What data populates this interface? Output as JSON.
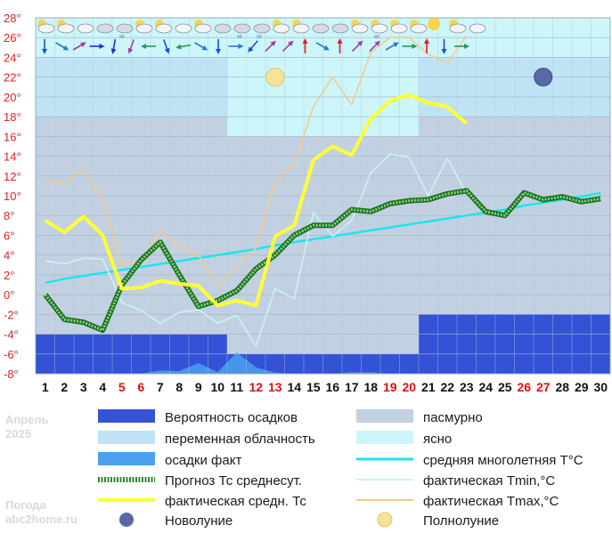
{
  "chart_data": {
    "type": "line",
    "x": [
      1,
      2,
      3,
      4,
      5,
      6,
      7,
      8,
      9,
      10,
      11,
      12,
      13,
      14,
      15,
      16,
      17,
      18,
      19,
      20,
      21,
      22,
      23,
      24,
      25,
      26,
      27,
      28,
      29,
      30
    ],
    "x_labels": [
      "1",
      "2",
      "3",
      "4",
      "5",
      "6",
      "7",
      "8",
      "9",
      "10",
      "11",
      "12",
      "13",
      "14",
      "15",
      "16",
      "17",
      "18",
      "19",
      "20",
      "21",
      "22",
      "23",
      "24",
      "25",
      "26",
      "27",
      "28",
      "29",
      "30"
    ],
    "weekend_days": [
      5,
      6,
      12,
      13,
      19,
      20,
      26,
      27
    ],
    "ylim": [
      -8,
      28
    ],
    "yticks": [
      -8,
      -6,
      -4,
      -2,
      0,
      2,
      4,
      6,
      8,
      10,
      12,
      14,
      16,
      18,
      20,
      22,
      24,
      26,
      28
    ],
    "ytick_labels": [
      "-8°",
      "-6°",
      "-4°",
      "-2°",
      "0°",
      "2°",
      "4°",
      "6°",
      "8°",
      "10°",
      "12°",
      "14°",
      "16°",
      "18°",
      "20°",
      "22°",
      "24°",
      "26°",
      "28°"
    ],
    "cloud_bands": [
      {
        "from": 0.5,
        "to": 10.5,
        "low": 18,
        "high": 28,
        "kind": "overcast"
      },
      {
        "from": 10.5,
        "to": 20.5,
        "low": 16,
        "high": 28,
        "kind": "clear"
      },
      {
        "from": 20.5,
        "to": 30.5,
        "low": 18,
        "high": 28,
        "kind": "overcast"
      }
    ],
    "precip_probability": [
      {
        "from": 0.5,
        "to": 10.5,
        "top": -4
      },
      {
        "from": 10.5,
        "to": 20.5,
        "top": -6
      },
      {
        "from": 20.5,
        "to": 30.5,
        "top": -2
      }
    ],
    "precip_actual": [
      0,
      0,
      0,
      0,
      0,
      0,
      0.6,
      0.5,
      2,
      0.3,
      4,
      1.2,
      0.2,
      0,
      0,
      0,
      0.3,
      0.3,
      0,
      0,
      0,
      0,
      0,
      0,
      0,
      0,
      0,
      0,
      0,
      0
    ],
    "series": [
      {
        "name": "Прогноз Тс среднесут.",
        "color": "#2e8b2e",
        "values": [
          0,
          -2.5,
          -2.8,
          -3.6,
          1,
          3.5,
          5.3,
          2,
          -1.2,
          -0.6,
          0.4,
          2.6,
          4,
          6,
          7,
          7,
          8.6,
          8.4,
          9.2,
          9.5,
          9.6,
          10.2,
          10.5,
          8.4,
          8,
          10.3,
          9.6,
          9.9,
          9.4,
          9.7
        ]
      },
      {
        "name": "фактическая средн. Тс",
        "color": "#ffff33",
        "values": [
          7.5,
          6.3,
          7.9,
          6,
          0.6,
          0.7,
          1.4,
          1.1,
          0.9,
          -1.1,
          -0.6,
          -1.1,
          5.9,
          7,
          13.6,
          15,
          14.1,
          17.8,
          19.6,
          20.2,
          19.4,
          19,
          17.3,
          null,
          null,
          null,
          null,
          null,
          null,
          null
        ]
      },
      {
        "name": "средняя многолетняя T°C",
        "color": "#19e6ee",
        "values": [
          1.2,
          1.6,
          1.9,
          2.2,
          2.5,
          2.8,
          3.1,
          3.4,
          3.7,
          4,
          4.3,
          4.6,
          5,
          5.3,
          5.6,
          5.9,
          6.2,
          6.5,
          6.8,
          7.1,
          7.4,
          7.7,
          8,
          8.3,
          8.6,
          9,
          9.3,
          9.6,
          9.9,
          10.3
        ]
      },
      {
        "name": "фактическая Tmin,°C",
        "color": "#c8f4f4",
        "values": [
          3.4,
          3.1,
          3.7,
          3.6,
          -0.8,
          -1.6,
          -2.9,
          -1.8,
          -1.5,
          -2.9,
          -2.1,
          -5.2,
          0.6,
          -0.4,
          8.3,
          5.9,
          7.5,
          12.3,
          14.2,
          13.9,
          10,
          13.8,
          10.2,
          null,
          null,
          null,
          null,
          null,
          null,
          null
        ]
      },
      {
        "name": "фактическая Tmax,°C",
        "color": "#f3c98c",
        "values": [
          11.5,
          11.3,
          12.7,
          9.6,
          3,
          3.3,
          6.4,
          4.8,
          4,
          0.9,
          2.9,
          4.7,
          11.4,
          13.2,
          19,
          22,
          19.2,
          24.5,
          26,
          26,
          24.3,
          23.4,
          26.2,
          null,
          null,
          null,
          null,
          null,
          null,
          null
        ]
      }
    ],
    "weather_icons": [
      "partly-cloudy-icon",
      "partly-cloudy-icon",
      "cloudy-icon",
      "overcast-icon",
      "overcast-rain-icon",
      "partly-cloudy-icon",
      "partly-cloudy-icon",
      "cloudy-icon",
      "partly-cloudy-icon",
      "overcast-icon",
      "overcast-rain-icon",
      "overcast-rain-icon",
      "partly-cloudy-icon",
      "partly-cloudy-icon",
      "overcast-icon",
      "overcast-icon",
      "partly-cloudy-icon",
      "partly-cloudy-rain-icon",
      "partly-cloudy-icon",
      "partly-cloudy-icon",
      "sun-icon",
      "partly-cloudy-icon",
      "cloudy-icon"
    ],
    "wind_arrows": [
      {
        "rot": 0,
        "color": "#1a4fd6"
      },
      {
        "rot": -60,
        "color": "#2a7ad0"
      },
      {
        "rot": -120,
        "color": "#a040a0"
      },
      {
        "rot": -90,
        "color": "#2a2ad0"
      },
      {
        "rot": 10,
        "color": "#2a2ad0"
      },
      {
        "rot": 20,
        "color": "#a040a0"
      },
      {
        "rot": 90,
        "color": "#2a9a50"
      },
      {
        "rot": -20,
        "color": "#1a4fd6"
      },
      {
        "rot": 80,
        "color": "#2a9a50"
      },
      {
        "rot": -60,
        "color": "#2a7ad0"
      },
      {
        "rot": 0,
        "color": "#1a4fd6"
      },
      {
        "rot": -90,
        "color": "#2a7ad0"
      },
      {
        "rot": 40,
        "color": "#1a4fd6"
      },
      {
        "rot": -135,
        "color": "#a040a0"
      },
      {
        "rot": -135,
        "color": "#a040a0"
      },
      {
        "rot": 180,
        "color": "#e02020"
      },
      {
        "rot": -60,
        "color": "#2a7ad0"
      },
      {
        "rot": 180,
        "color": "#e02020"
      },
      {
        "rot": -135,
        "color": "#a040a0"
      },
      {
        "rot": -135,
        "color": "#a040a0"
      },
      {
        "rot": -120,
        "color": "#2a7ad0"
      },
      {
        "rot": -90,
        "color": "#2a9a50"
      },
      {
        "rot": 180,
        "color": "#e02020"
      },
      {
        "rot": 0,
        "color": "#1a4fd6"
      },
      {
        "rot": -90,
        "color": "#2a9a50"
      }
    ],
    "moons": [
      {
        "day": 13,
        "temp": 22,
        "kind": "full"
      },
      {
        "day": 27,
        "temp": 22,
        "kind": "new"
      }
    ]
  },
  "side": {
    "month": "Апрель",
    "year": "2025",
    "brand1": "Погода",
    "brand2": "abc2home.ru"
  },
  "legend": {
    "precip_prob": "Вероятность осадков",
    "overcast": "пасмурно",
    "variable": "переменная облачность",
    "clear": "ясно",
    "precip_fact": "осадки факт",
    "avg_longterm": "средняя многолетняя T°C",
    "forecast_avg": "Прогноз Тс среднесут.",
    "tmin": "фактическая Tmin,°C",
    "actual_avg": "фактическая средн. Тс",
    "tmax": "фактическая Tmax,°C",
    "new_moon": "Новолуние",
    "full_moon": "Полнолуние"
  },
  "colors": {
    "overcast": "#c2d1e1",
    "variable": "#bfe3f5",
    "clear": "#ccf6fa",
    "precip_prob": "#3352d6",
    "precip_fact": "#4aa0ee"
  }
}
